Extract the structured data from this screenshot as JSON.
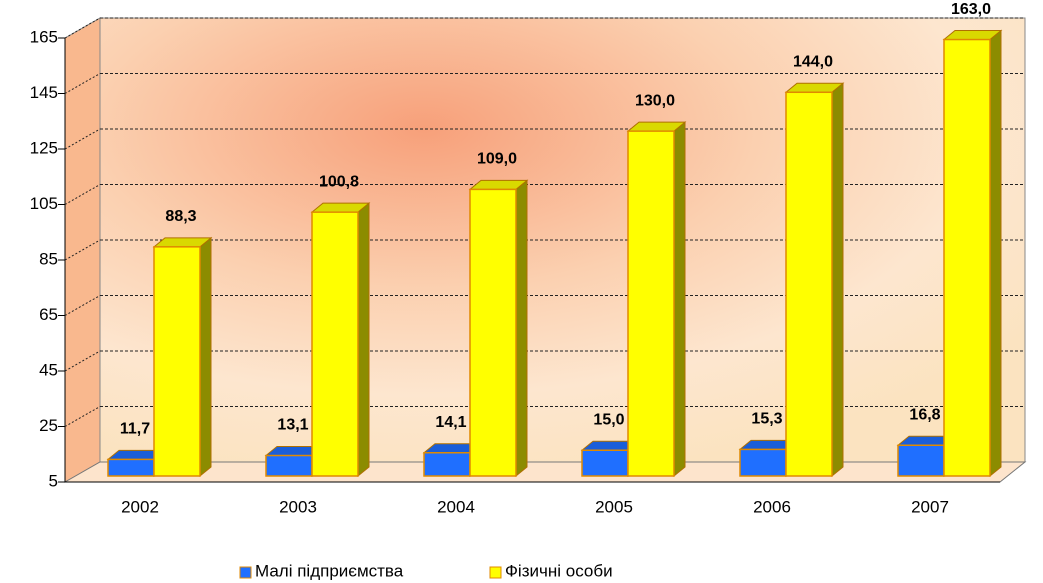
{
  "chart_data": {
    "type": "bar3d",
    "categories": [
      "2002",
      "2003",
      "2004",
      "2005",
      "2006",
      "2007"
    ],
    "series": [
      {
        "name": "Малі підприємства",
        "color": "#1f6fff",
        "values": [
          11.7,
          13.1,
          14.1,
          15.0,
          15.3,
          16.8
        ],
        "value_labels": [
          "11,7",
          "13,1",
          "14,1",
          "15,0",
          "15,3",
          "16,8"
        ]
      },
      {
        "name": "Фізичні особи",
        "color": "#ffff00",
        "values": [
          88.3,
          100.8,
          109.0,
          130.0,
          144.0,
          163.0
        ],
        "value_labels": [
          "88,3",
          "100,8",
          "109,0",
          "130,0",
          "144,0",
          "163,0"
        ]
      }
    ],
    "ylim": [
      5,
      165
    ],
    "yticks": [
      5,
      25,
      45,
      65,
      85,
      105,
      125,
      145,
      165
    ],
    "grid": true,
    "legend": "bottom"
  }
}
